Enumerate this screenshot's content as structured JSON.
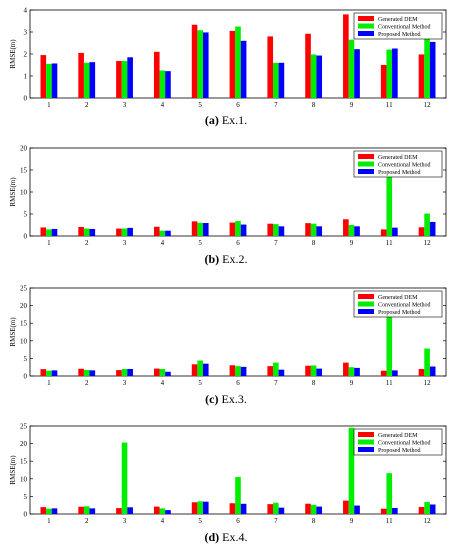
{
  "figure": {
    "categories": [
      "1",
      "2",
      "3",
      "4",
      "5",
      "6",
      "7",
      "8",
      "9",
      "11",
      "12"
    ],
    "legend": [
      "Generated DEM",
      "Conventional Method",
      "Proposed Method"
    ],
    "colors": [
      "#ff0000",
      "#00ee00",
      "#0000ff"
    ]
  },
  "chart_data": [
    {
      "type": "bar",
      "caption": "(a) Ex.1.",
      "ylabel": "RMSE(m)",
      "ylim": [
        0,
        4
      ],
      "yticks": [
        0,
        1,
        2,
        3,
        4
      ],
      "categories": [
        "1",
        "2",
        "3",
        "4",
        "5",
        "6",
        "7",
        "8",
        "9",
        "11",
        "12"
      ],
      "legend_position": "top-right",
      "series": [
        {
          "name": "Generated DEM",
          "values": [
            1.95,
            2.05,
            1.68,
            2.1,
            3.33,
            3.05,
            2.8,
            2.92,
            3.8,
            1.5,
            1.98
          ]
        },
        {
          "name": "Conventional Method",
          "values": [
            1.55,
            1.6,
            1.68,
            1.25,
            3.08,
            3.25,
            1.6,
            1.98,
            2.65,
            2.2,
            2.7
          ]
        },
        {
          "name": "Proposed Method",
          "values": [
            1.57,
            1.63,
            1.85,
            1.22,
            2.98,
            2.6,
            1.6,
            1.93,
            2.22,
            2.25,
            2.55
          ]
        }
      ]
    },
    {
      "type": "bar",
      "caption": "(b) Ex.2.",
      "ylabel": "RMSE(m)",
      "ylim": [
        0,
        20
      ],
      "yticks": [
        0,
        5,
        10,
        15,
        20
      ],
      "categories": [
        "1",
        "2",
        "3",
        "4",
        "5",
        "6",
        "7",
        "8",
        "9",
        "11",
        "12"
      ],
      "legend_position": "top-right",
      "series": [
        {
          "name": "Generated DEM",
          "values": [
            1.95,
            2.05,
            1.68,
            2.1,
            3.33,
            3.05,
            2.8,
            2.92,
            3.8,
            1.5,
            1.98
          ]
        },
        {
          "name": "Conventional Method",
          "values": [
            1.5,
            1.7,
            1.7,
            1.2,
            3.0,
            3.4,
            2.7,
            2.8,
            2.5,
            14.8,
            5.1
          ]
        },
        {
          "name": "Proposed Method",
          "values": [
            1.6,
            1.6,
            1.85,
            1.2,
            2.95,
            2.6,
            2.2,
            2.2,
            2.2,
            1.9,
            3.2
          ]
        }
      ]
    },
    {
      "type": "bar",
      "caption": "(c) Ex.3.",
      "ylabel": "RMSE(m)",
      "ylim": [
        0,
        25
      ],
      "yticks": [
        0,
        5,
        10,
        15,
        20,
        25
      ],
      "categories": [
        "1",
        "2",
        "3",
        "4",
        "5",
        "6",
        "7",
        "8",
        "9",
        "11",
        "12"
      ],
      "legend_position": "top-right",
      "series": [
        {
          "name": "Generated DEM",
          "values": [
            1.95,
            2.05,
            1.68,
            2.1,
            3.33,
            3.05,
            2.8,
            2.92,
            3.8,
            1.5,
            1.98
          ]
        },
        {
          "name": "Conventional Method",
          "values": [
            1.5,
            1.7,
            2.0,
            2.0,
            4.4,
            2.8,
            3.8,
            3.0,
            2.5,
            17.5,
            7.8
          ]
        },
        {
          "name": "Proposed Method",
          "values": [
            1.6,
            1.6,
            2.0,
            1.2,
            3.5,
            2.6,
            1.8,
            2.1,
            2.3,
            1.6,
            2.7
          ]
        }
      ]
    },
    {
      "type": "bar",
      "caption": "(d) Ex.4.",
      "ylabel": "RMSE(m)",
      "ylim": [
        0,
        25
      ],
      "yticks": [
        0,
        5,
        10,
        15,
        20,
        25
      ],
      "categories": [
        "1",
        "2",
        "3",
        "4",
        "5",
        "6",
        "7",
        "8",
        "9",
        "11",
        "12"
      ],
      "legend_position": "top-right",
      "series": [
        {
          "name": "Generated DEM",
          "values": [
            1.95,
            2.05,
            1.68,
            2.1,
            3.33,
            3.05,
            2.8,
            2.92,
            3.8,
            1.5,
            1.98
          ]
        },
        {
          "name": "Conventional Method",
          "values": [
            1.5,
            2.2,
            20.3,
            1.6,
            3.6,
            10.5,
            3.2,
            2.6,
            24.5,
            11.6,
            3.4
          ]
        },
        {
          "name": "Proposed Method",
          "values": [
            1.6,
            1.6,
            1.9,
            1.1,
            3.5,
            2.9,
            1.8,
            2.1,
            2.4,
            1.7,
            2.7
          ]
        }
      ]
    }
  ]
}
